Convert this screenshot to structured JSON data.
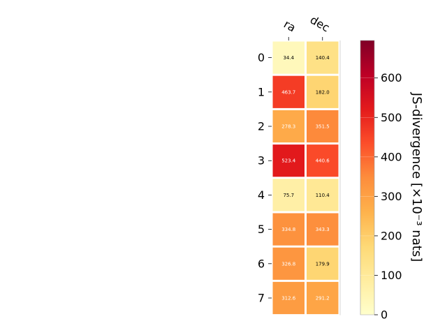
{
  "chart_data": {
    "type": "heatmap",
    "columns": [
      "ra",
      "dec"
    ],
    "rows": [
      "0",
      "1",
      "2",
      "3",
      "4",
      "5",
      "6",
      "7"
    ],
    "values": [
      [
        34.4,
        140.4
      ],
      [
        463.7,
        182.0
      ],
      [
        278.3,
        351.5
      ],
      [
        523.4,
        440.6
      ],
      [
        75.7,
        110.4
      ],
      [
        334.8,
        343.3
      ],
      [
        326.8,
        179.9
      ],
      [
        312.6,
        291.2
      ]
    ],
    "cell_labels": [
      [
        "34.4",
        "140.4"
      ],
      [
        "463.7",
        "182.0"
      ],
      [
        "278.3",
        "351.5"
      ],
      [
        "523.4",
        "440.6"
      ],
      [
        "75.7",
        "110.4"
      ],
      [
        "334.8",
        "343.3"
      ],
      [
        "326.8",
        "179.9"
      ],
      [
        "312.6",
        "291.2"
      ]
    ],
    "colorbar": {
      "label": "JS-divergence [×10⁻³ nats]",
      "range": [
        0,
        695
      ],
      "ticks": [
        0,
        100,
        200,
        300,
        400,
        500,
        600
      ],
      "tick_labels": [
        "0",
        "100",
        "200",
        "300",
        "400",
        "500",
        "600"
      ],
      "colormap": "YlOrRd",
      "colormap_stops": [
        "#ffffcc",
        "#ffeda0",
        "#fed976",
        "#feb24c",
        "#fd8d3c",
        "#fc4e2a",
        "#e31a1c",
        "#bd0026",
        "#800026"
      ]
    },
    "grid": false
  }
}
